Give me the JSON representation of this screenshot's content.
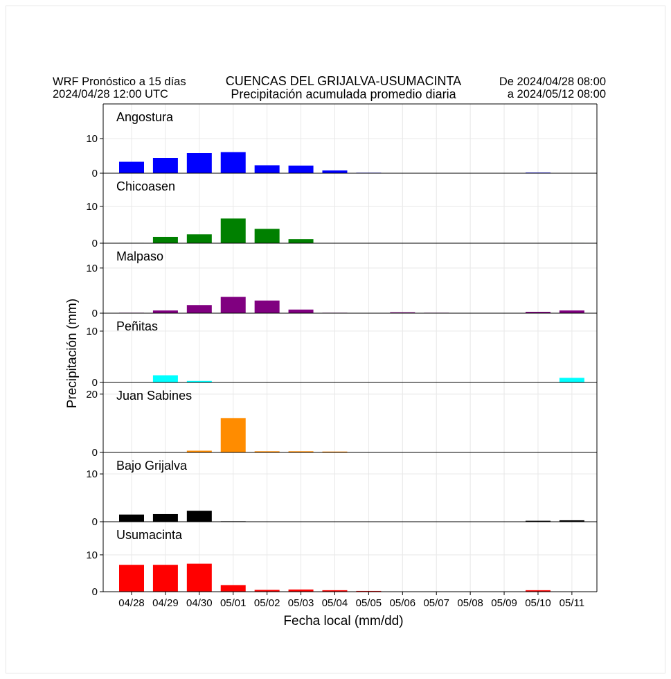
{
  "header": {
    "left_line1": "WRF Pronóstico a 15 días",
    "left_line2": "2024/04/28 12:00 UTC",
    "center_line1": "CUENCAS DEL GRIJALVA-USUMACINTA",
    "center_line2": "Precipitación acumulada promedio diaria",
    "right_line1": "De 2024/04/28 08:00",
    "right_line2": "a 2024/05/12 08:00"
  },
  "chart_data": {
    "type": "bar",
    "xlabel": "Fecha local (mm/dd)",
    "ylabel": "Precipitación (mm)",
    "categories": [
      "04/28",
      "04/29",
      "04/30",
      "05/01",
      "05/02",
      "05/03",
      "05/04",
      "05/05",
      "05/06",
      "05/07",
      "05/08",
      "05/09",
      "05/10",
      "05/11"
    ],
    "grid": true,
    "panels": [
      {
        "name": "Angostura",
        "color": "#0000ff",
        "ylim": [
          0,
          20
        ],
        "yticks": [
          0,
          10
        ],
        "values": [
          3.3,
          4.4,
          5.8,
          6.1,
          2.3,
          2.2,
          0.8,
          0.15,
          0.05,
          0.1,
          0.05,
          0.05,
          0.2,
          0.05
        ]
      },
      {
        "name": "Chicoasen",
        "color": "#008000",
        "ylim": [
          0,
          19
        ],
        "yticks": [
          0,
          10
        ],
        "values": [
          0.1,
          1.7,
          2.4,
          6.7,
          3.9,
          1.1,
          0.05,
          0.0,
          0.0,
          0.0,
          0.0,
          0.0,
          0.0,
          0.1
        ]
      },
      {
        "name": "Malpaso",
        "color": "#800080",
        "ylim": [
          0,
          15.5
        ],
        "yticks": [
          0,
          10
        ],
        "values": [
          0.1,
          0.6,
          1.8,
          3.6,
          2.8,
          0.8,
          0.1,
          0.05,
          0.2,
          0.1,
          0.0,
          0.05,
          0.3,
          0.6
        ]
      },
      {
        "name": "Peñitas",
        "color": "#00ffff",
        "ylim": [
          0,
          13.5
        ],
        "yticks": [
          0,
          10
        ],
        "values": [
          0.0,
          1.4,
          0.3,
          0.0,
          0.0,
          0.0,
          0.0,
          0.0,
          0.0,
          0.0,
          0.0,
          0.0,
          0.0,
          0.9
        ]
      },
      {
        "name": "Juan Sabines",
        "color": "#ff8c00",
        "ylim": [
          0,
          24
        ],
        "yticks": [
          0,
          20
        ],
        "values": [
          0.1,
          0.1,
          0.6,
          11.8,
          0.4,
          0.4,
          0.3,
          0.05,
          0.0,
          0.0,
          0.0,
          0.0,
          0.0,
          0.0
        ]
      },
      {
        "name": "Bajo Grijalva",
        "color": "#000000",
        "ylim": [
          0,
          14.5
        ],
        "yticks": [
          0,
          10
        ],
        "values": [
          1.5,
          1.6,
          2.3,
          0.1,
          0.05,
          0.05,
          0.05,
          0.05,
          0.05,
          0.05,
          0.05,
          0.05,
          0.2,
          0.3
        ]
      },
      {
        "name": "Usumacinta",
        "color": "#ff0000",
        "ylim": [
          0,
          19
        ],
        "yticks": [
          0,
          10
        ],
        "values": [
          7.3,
          7.3,
          7.6,
          1.8,
          0.5,
          0.6,
          0.4,
          0.2,
          0.05,
          0.05,
          0.05,
          0.05,
          0.4,
          0.05
        ]
      }
    ]
  }
}
